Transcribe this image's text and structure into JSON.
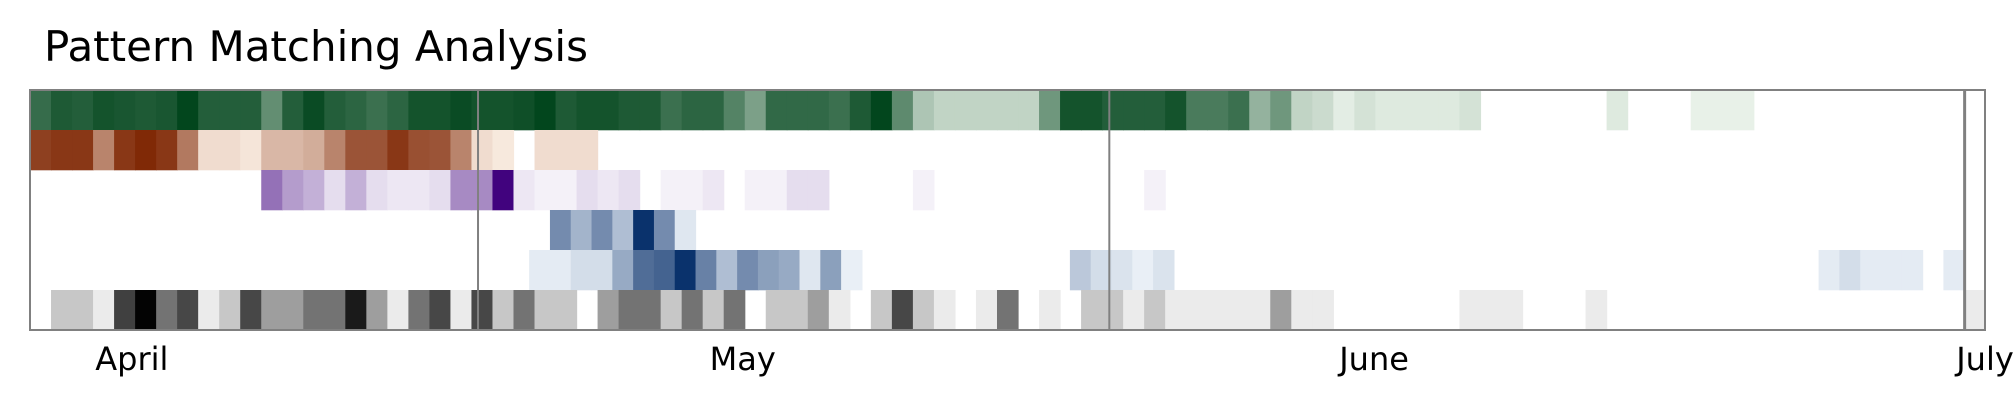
{
  "chart_data": {
    "type": "heatmap",
    "title": "Pattern Matching Analysis",
    "xlabel": "",
    "ylabel": "",
    "x_axis": {
      "start": "2016-03-27",
      "end": "2016-07-01",
      "ticks": [
        "April",
        "May",
        "June",
        "July"
      ],
      "tick_dates": [
        "2016-04-01",
        "2016-05-01",
        "2016-06-01",
        "2016-07-01"
      ]
    },
    "month_boundaries": [
      "2016-04-18",
      "2016-05-19",
      "2016-06-30"
    ],
    "grid": false,
    "legend": "none",
    "rows": [
      {
        "colormap": "greens",
        "colors": [
          "#f7fcf5",
          "#00441b"
        ],
        "values": [
          0.78,
          0.88,
          0.86,
          0.92,
          0.9,
          0.88,
          0.9,
          0.99,
          0.86,
          0.86,
          0.86,
          0.6,
          0.86,
          0.96,
          0.86,
          0.82,
          0.76,
          0.82,
          0.92,
          0.92,
          0.96,
          0.92,
          0.92,
          0.94,
          0.99,
          0.88,
          0.92,
          0.92,
          0.88,
          0.88,
          0.76,
          0.82,
          0.82,
          0.66,
          0.5,
          0.8,
          0.8,
          0.8,
          0.76,
          0.88,
          0.99,
          0.62,
          0.3,
          0.22,
          0.22,
          0.22,
          0.22,
          0.22,
          0.55,
          0.92,
          0.92,
          0.86,
          0.86,
          0.86,
          0.92,
          0.7,
          0.7,
          0.76,
          0.4,
          0.55,
          0.22,
          0.18,
          0.08,
          0.14,
          0.1,
          0.1,
          0.1,
          0.1,
          0.14,
          0,
          0,
          0,
          0,
          0,
          0,
          0.1,
          0,
          0,
          0,
          0.06,
          0.06,
          0.06,
          0,
          0,
          0,
          0,
          0,
          0,
          0,
          0,
          0,
          0,
          0
        ]
      },
      {
        "colormap": "oranges",
        "colors": [
          "#fff5eb",
          "#7f2704"
        ],
        "values": [
          0.88,
          0.92,
          0.92,
          0.55,
          0.92,
          0.99,
          0.92,
          0.6,
          0.12,
          0.12,
          0.08,
          0.3,
          0.3,
          0.35,
          0.55,
          0.78,
          0.78,
          0.92,
          0.8,
          0.78,
          0.55,
          0.12,
          0.06,
          0,
          0.12,
          0.12,
          0.12,
          0,
          0,
          0,
          0,
          0,
          0,
          0,
          0,
          0,
          0,
          0,
          0,
          0,
          0,
          0,
          0,
          0,
          0,
          0,
          0,
          0,
          0,
          0,
          0,
          0,
          0,
          0,
          0,
          0,
          0,
          0,
          0,
          0,
          0,
          0,
          0,
          0,
          0,
          0,
          0,
          0,
          0,
          0,
          0,
          0,
          0,
          0,
          0,
          0,
          0,
          0,
          0,
          0,
          0,
          0,
          0,
          0,
          0,
          0,
          0,
          0,
          0,
          0,
          0,
          0,
          0
        ]
      },
      {
        "colormap": "purples",
        "colors": [
          "#fcfbfd",
          "#3f007d"
        ],
        "values": [
          0,
          0,
          0,
          0,
          0,
          0,
          0,
          0,
          0,
          0,
          0,
          0.55,
          0.38,
          0.3,
          0.12,
          0.3,
          0.12,
          0.08,
          0.08,
          0.12,
          0.45,
          0.45,
          0.99,
          0.08,
          0.04,
          0.04,
          0.12,
          0.08,
          0.12,
          0,
          0.04,
          0.04,
          0.08,
          0,
          0.04,
          0.04,
          0.12,
          0.12,
          0,
          0,
          0,
          0,
          0.04,
          0,
          0,
          0,
          0,
          0,
          0,
          0,
          0,
          0,
          0,
          0.04,
          0,
          0,
          0,
          0,
          0,
          0,
          0,
          0,
          0,
          0,
          0,
          0,
          0,
          0,
          0,
          0,
          0,
          0,
          0,
          0,
          0,
          0,
          0,
          0,
          0,
          0,
          0,
          0,
          0,
          0,
          0,
          0,
          0,
          0,
          0,
          0,
          0,
          0,
          0
        ]
      },
      {
        "colormap": "blues",
        "colors": [
          "#f7fbff",
          "#08306b"
        ],
        "values": [
          0,
          0,
          0,
          0,
          0,
          0,
          0,
          0,
          0,
          0,
          0,
          0,
          0,
          0,
          0,
          0,
          0,
          0,
          0,
          0,
          0,
          0,
          0,
          0,
          0,
          0.55,
          0.35,
          0.55,
          0.3,
          0.99,
          0.55,
          0.1,
          0,
          0,
          0,
          0,
          0,
          0,
          0,
          0,
          0,
          0,
          0,
          0,
          0,
          0,
          0,
          0,
          0,
          0,
          0,
          0,
          0,
          0,
          0,
          0,
          0,
          0,
          0,
          0,
          0,
          0,
          0,
          0,
          0,
          0,
          0,
          0,
          0,
          0,
          0,
          0,
          0,
          0,
          0,
          0,
          0,
          0,
          0,
          0,
          0,
          0,
          0,
          0,
          0,
          0,
          0,
          0,
          0,
          0,
          0,
          0,
          0,
          0
        ]
      },
      {
        "colormap": "blues",
        "colors": [
          "#f7fbff",
          "#08306b"
        ],
        "values": [
          0,
          0,
          0,
          0,
          0,
          0,
          0,
          0,
          0,
          0,
          0,
          0,
          0,
          0,
          0,
          0,
          0,
          0,
          0,
          0,
          0,
          0,
          0,
          0,
          0.08,
          0.08,
          0.15,
          0.15,
          0.4,
          0.7,
          0.75,
          0.99,
          0.6,
          0.3,
          0.55,
          0.45,
          0.4,
          0.1,
          0.45,
          0.06,
          0,
          0,
          0,
          0,
          0,
          0,
          0,
          0,
          0,
          0,
          0.25,
          0.15,
          0.12,
          0.06,
          0.12,
          0,
          0,
          0,
          0,
          0,
          0,
          0,
          0,
          0,
          0,
          0,
          0,
          0,
          0,
          0,
          0,
          0,
          0,
          0,
          0,
          0,
          0,
          0,
          0,
          0,
          0,
          0,
          0,
          0,
          0,
          0,
          0.08,
          0.15,
          0.08,
          0.08,
          0.08,
          0,
          0.08,
          0
        ]
      },
      {
        "colormap": "greys",
        "colors": [
          "#ffffff",
          "#000000"
        ],
        "values": [
          0,
          0.22,
          0.22,
          0.08,
          0.75,
          0.99,
          0.55,
          0.72,
          0.08,
          0.22,
          0.72,
          0.38,
          0.38,
          0.55,
          0.55,
          0.9,
          0.38,
          0.08,
          0.55,
          0.72,
          0.08,
          0.72,
          0.22,
          0.55,
          0.22,
          0.22,
          0,
          0.38,
          0.55,
          0.55,
          0.22,
          0.55,
          0.22,
          0.55,
          0,
          0.22,
          0.22,
          0.38,
          0.08,
          0,
          0.22,
          0.72,
          0.22,
          0.08,
          0,
          0.08,
          0.55,
          0,
          0.08,
          0,
          0.22,
          0.22,
          0.08,
          0.22,
          0.08,
          0.08,
          0.08,
          0.08,
          0.08,
          0.38,
          0.08,
          0.08,
          0,
          0,
          0,
          0,
          0,
          0,
          0.08,
          0.08,
          0.08,
          0,
          0,
          0,
          0.08,
          0,
          0,
          0,
          0,
          0,
          0,
          0,
          0,
          0,
          0,
          0,
          0,
          0,
          0,
          0,
          0,
          0,
          0.08
        ]
      }
    ]
  }
}
